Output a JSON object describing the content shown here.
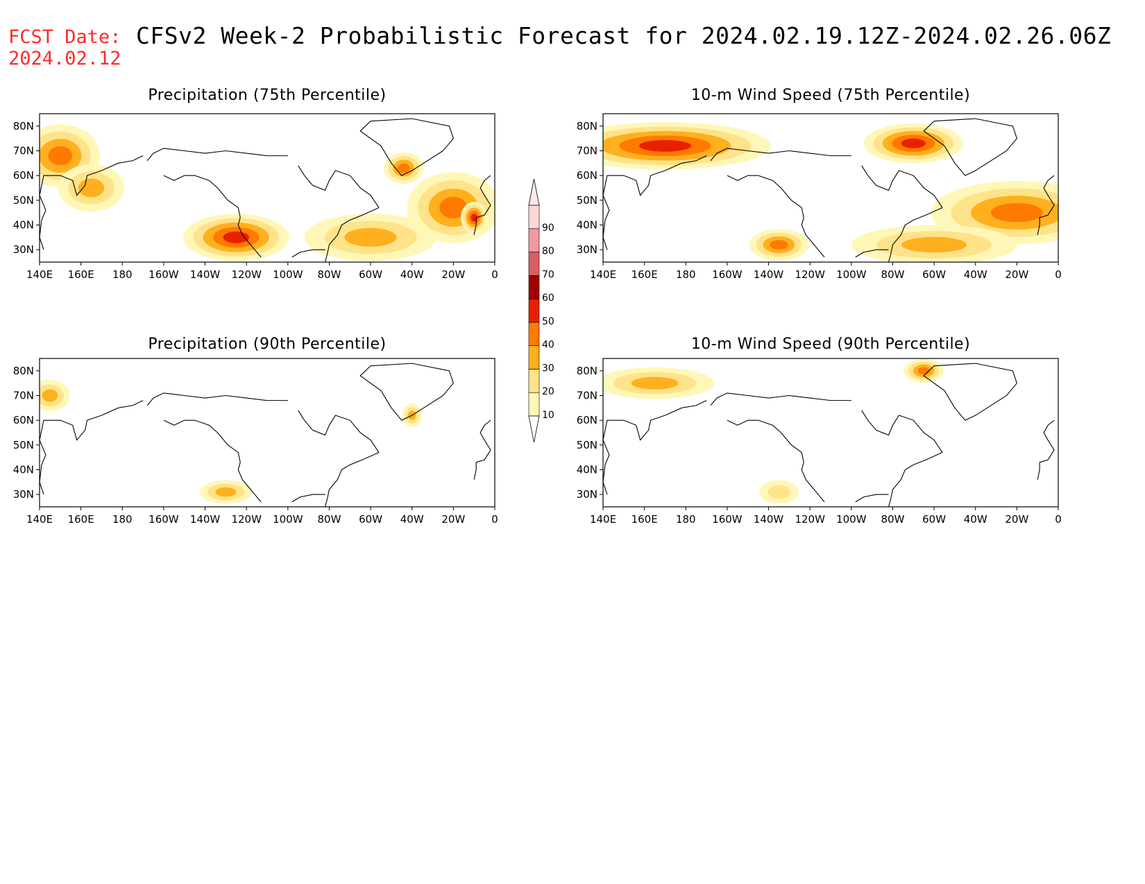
{
  "header": {
    "fcst_label": "FCST Date:",
    "fcst_date": "2024.02.12",
    "title": "CFSv2 Week-2 Probabilistic Forecast for 2024.02.19.12Z-2024.02.26.06Z"
  },
  "axes": {
    "lat_labels": [
      "80N",
      "70N",
      "60N",
      "50N",
      "40N",
      "30N"
    ],
    "lon_labels": [
      "140E",
      "160E",
      "180",
      "160W",
      "140W",
      "120W",
      "100W",
      "80W",
      "60W",
      "40W",
      "20W",
      "0"
    ]
  },
  "colorbar": {
    "levels": [
      "10",
      "20",
      "30",
      "40",
      "50",
      "60",
      "70",
      "80",
      "90"
    ],
    "colors": [
      "#fff7b8",
      "#ffe38a",
      "#ffb01e",
      "#ff7a00",
      "#e82000",
      "#a00000",
      "#d86060",
      "#f09aa0",
      "#fcd8d8"
    ]
  },
  "panels": [
    {
      "id": "precip75",
      "title": "Precipitation (75th Percentile)",
      "blobs": [
        {
          "lon": 150,
          "lat": 68,
          "rx": 12,
          "ry": 8,
          "level": 3
        },
        {
          "lon": 165,
          "lat": 55,
          "rx": 10,
          "ry": 6,
          "level": 2
        },
        {
          "lon": 235,
          "lat": 35,
          "rx": 16,
          "ry": 6,
          "level": 4
        },
        {
          "lon": 300,
          "lat": 35,
          "rx": 20,
          "ry": 6,
          "level": 2
        },
        {
          "lon": 340,
          "lat": 47,
          "rx": 14,
          "ry": 9,
          "level": 3
        },
        {
          "lon": 316,
          "lat": 63,
          "rx": 6,
          "ry": 4,
          "level": 3
        },
        {
          "lon": 350,
          "lat": 43,
          "rx": 4,
          "ry": 4,
          "level": 4
        }
      ]
    },
    {
      "id": "wind75",
      "title": "10-m Wind Speed (75th Percentile)",
      "blobs": [
        {
          "lon": 170,
          "lat": 72,
          "rx": 32,
          "ry": 6,
          "level": 4
        },
        {
          "lon": 290,
          "lat": 73,
          "rx": 15,
          "ry": 5,
          "level": 4
        },
        {
          "lon": 340,
          "lat": 45,
          "rx": 26,
          "ry": 8,
          "level": 3
        },
        {
          "lon": 225,
          "lat": 32,
          "rx": 9,
          "ry": 4,
          "level": 3
        },
        {
          "lon": 300,
          "lat": 32,
          "rx": 25,
          "ry": 5,
          "level": 2
        }
      ]
    },
    {
      "id": "precip90",
      "title": "Precipitation (90th Percentile)",
      "blobs": [
        {
          "lon": 145,
          "lat": 70,
          "rx": 6,
          "ry": 4,
          "level": 2
        },
        {
          "lon": 230,
          "lat": 31,
          "rx": 8,
          "ry": 3,
          "level": 2
        },
        {
          "lon": 320,
          "lat": 62,
          "rx": 3,
          "ry": 3,
          "level": 2
        }
      ]
    },
    {
      "id": "wind90",
      "title": "10-m Wind Speed (90th Percentile)",
      "blobs": [
        {
          "lon": 165,
          "lat": 75,
          "rx": 18,
          "ry": 4,
          "level": 2
        },
        {
          "lon": 295,
          "lat": 80,
          "rx": 6,
          "ry": 3,
          "level": 3
        },
        {
          "lon": 225,
          "lat": 31,
          "rx": 6,
          "ry": 3,
          "level": 1
        }
      ]
    }
  ]
}
